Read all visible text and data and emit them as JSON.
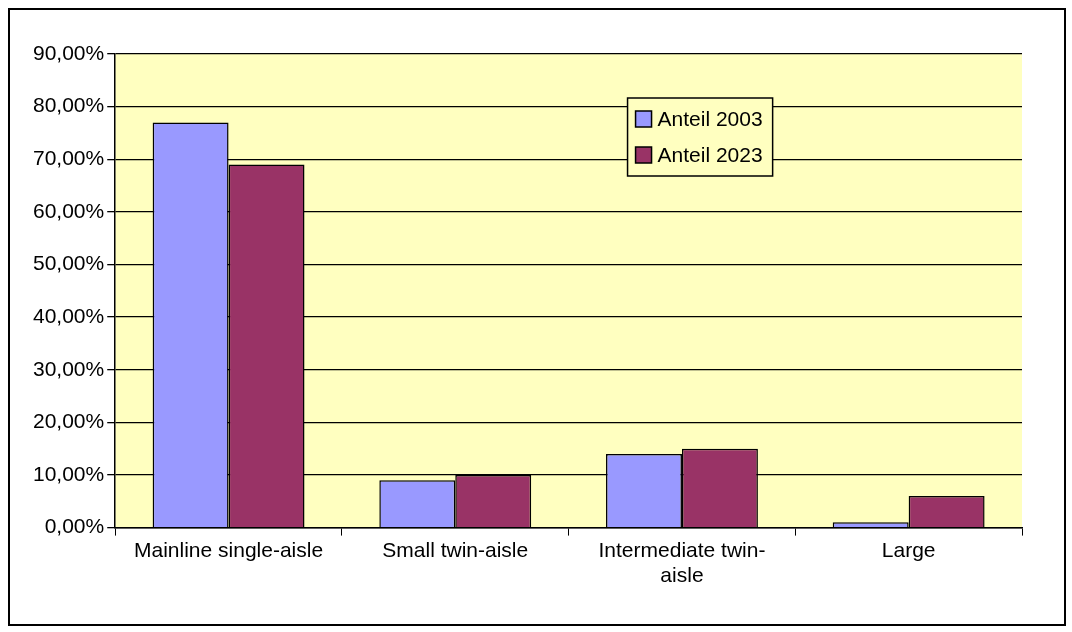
{
  "chart_data": {
    "type": "bar",
    "categories": [
      "Mainline single-aisle",
      "Small twin-aisle",
      "Intermediate twin-aisle",
      "Large"
    ],
    "series": [
      {
        "name": "Anteil 2003",
        "color": "#9999ff",
        "values": [
          77,
          9,
          14,
          1
        ]
      },
      {
        "name": "Anteil 2023",
        "color": "#993366",
        "values": [
          69,
          10,
          15,
          6
        ]
      }
    ],
    "ylim": [
      0,
      90
    ],
    "yticks": [
      {
        "value": 0,
        "label": "0,00%"
      },
      {
        "value": 10,
        "label": "10,00%"
      },
      {
        "value": 20,
        "label": "20,00%"
      },
      {
        "value": 30,
        "label": "30,00%"
      },
      {
        "value": 40,
        "label": "40,00%"
      },
      {
        "value": 50,
        "label": "50,00%"
      },
      {
        "value": 60,
        "label": "60,00%"
      },
      {
        "value": 70,
        "label": "70,00%"
      },
      {
        "value": 80,
        "label": "80,00%"
      },
      {
        "value": 90,
        "label": "90,00%"
      }
    ],
    "grid": "y",
    "legend": "top right"
  }
}
